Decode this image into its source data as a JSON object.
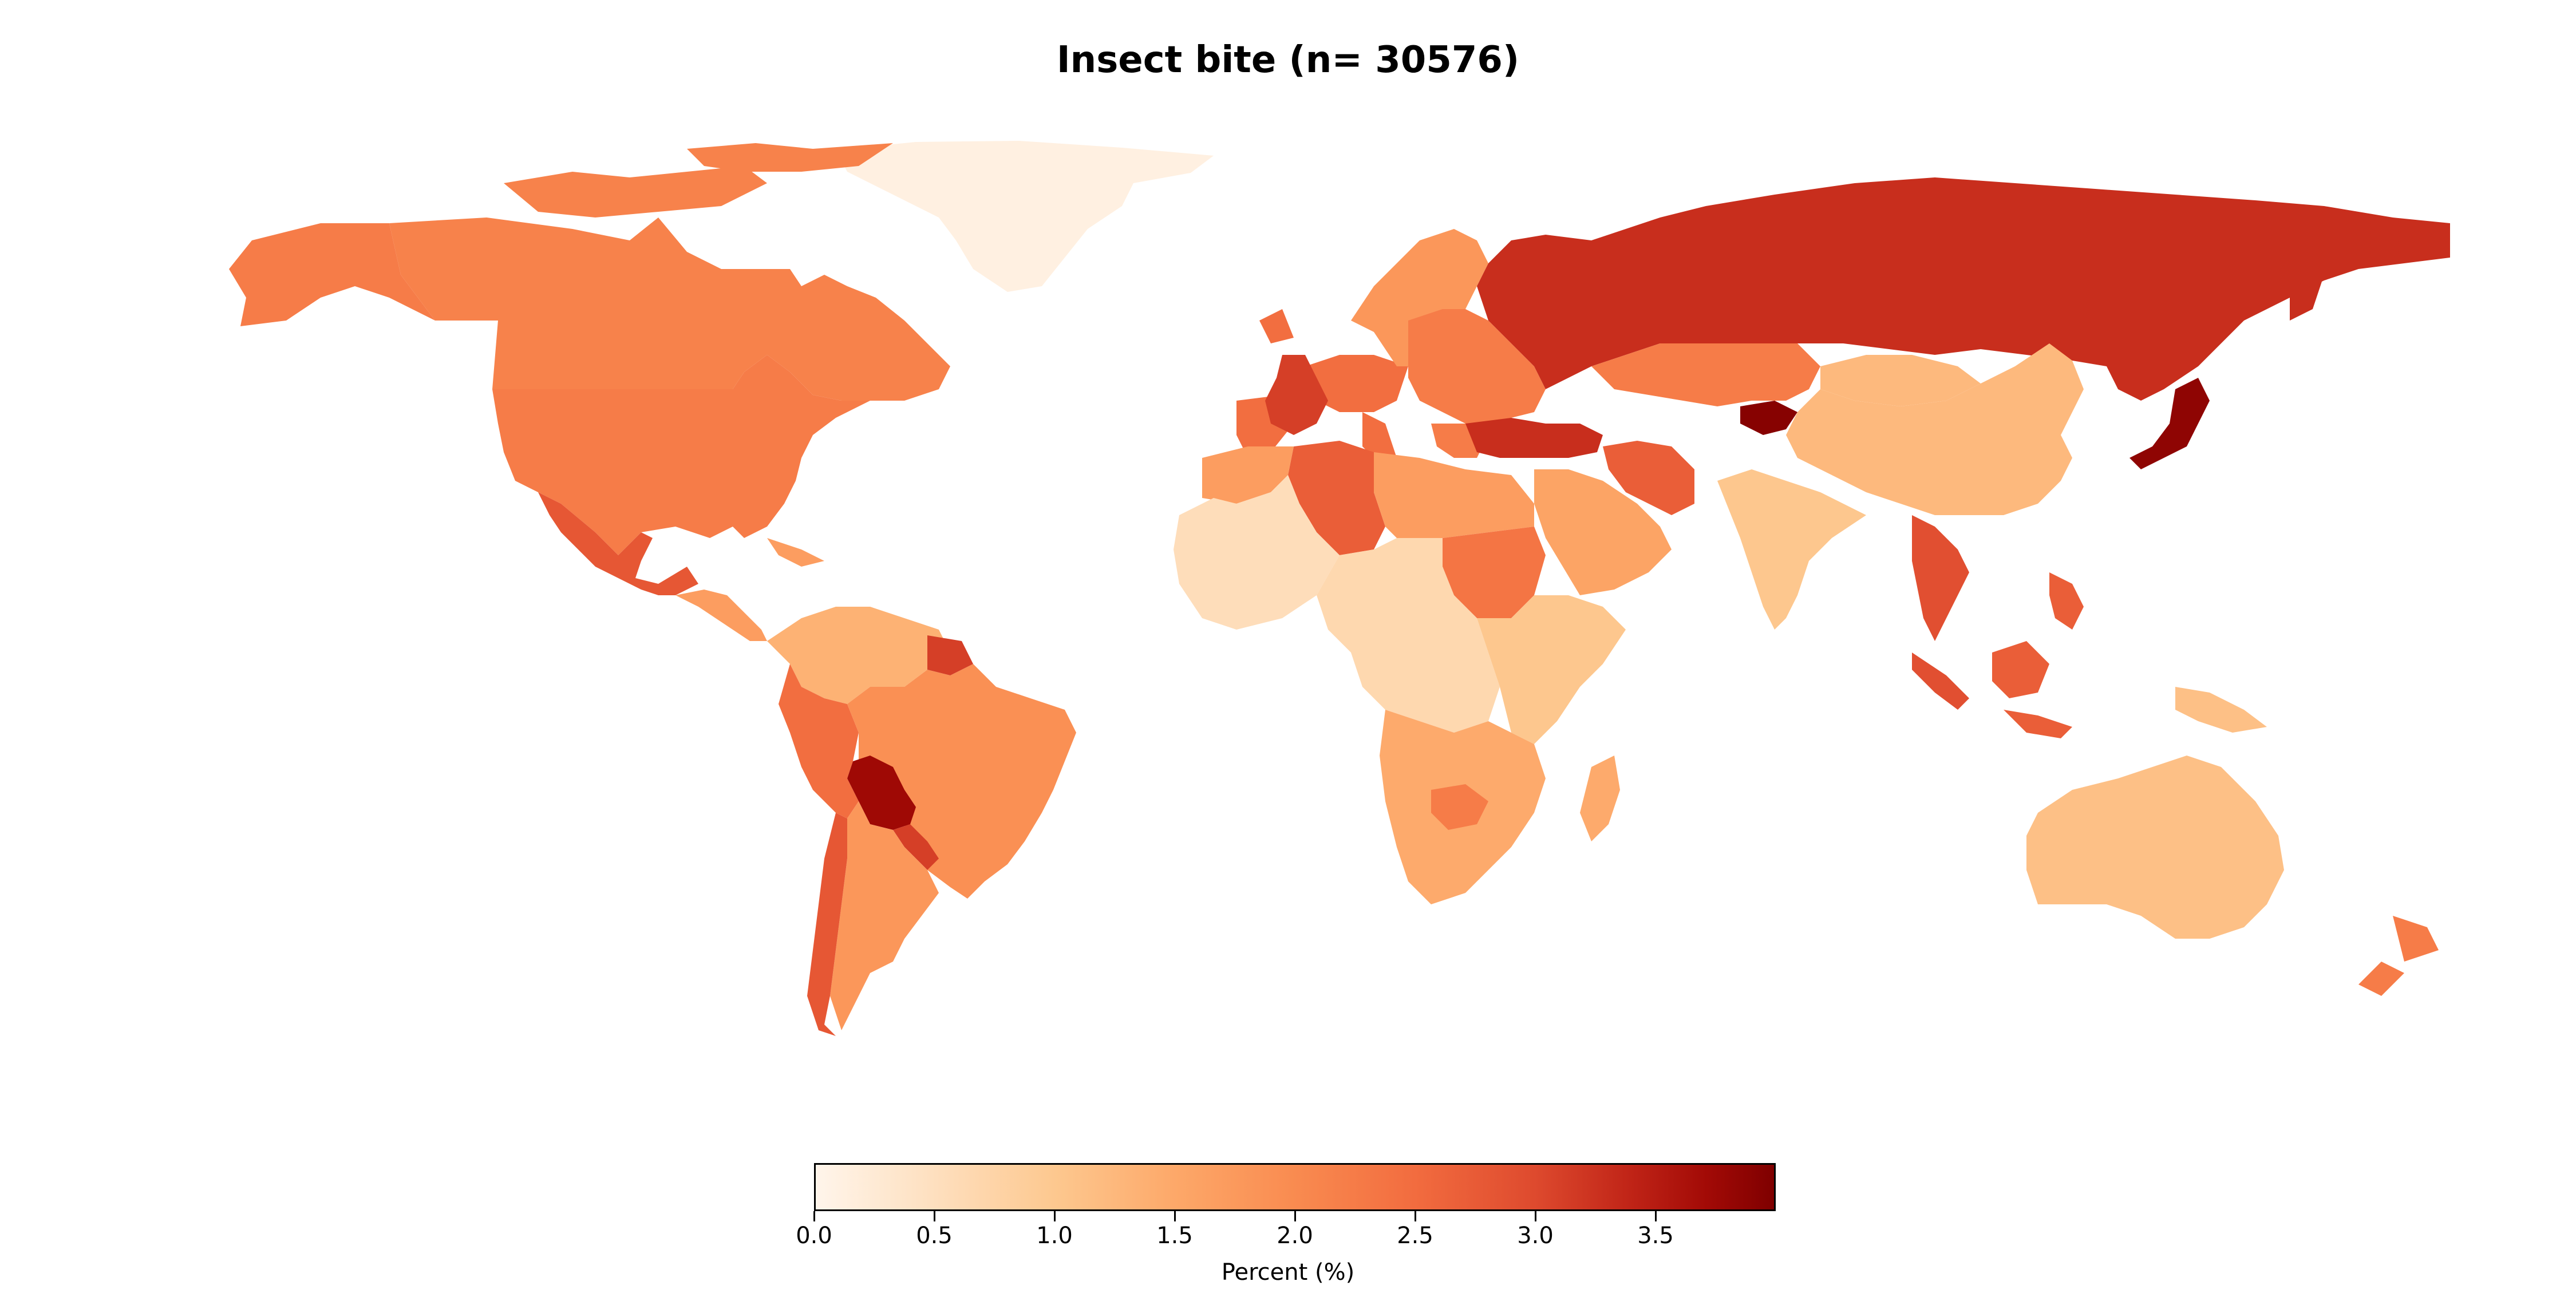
{
  "title": "Insect bite (n= 30576)",
  "colorbar": {
    "label": "Percent (%)",
    "min": 0.0,
    "max": 4.0,
    "ticks": [
      "0.0",
      "0.5",
      "1.0",
      "1.5",
      "2.0",
      "2.5",
      "3.0",
      "3.5"
    ],
    "colors": [
      "#fff5eb",
      "#fee0c0",
      "#fdc88f",
      "#fda869",
      "#f98b50",
      "#f26c3f",
      "#de4a2e",
      "#c02417",
      "#a20a06",
      "#7f0000"
    ]
  },
  "map_data": {
    "type": "choropleth",
    "regions": [
      {
        "name": "Greenland",
        "value": 0.1
      },
      {
        "name": "Canada",
        "value": 1.9
      },
      {
        "name": "USA",
        "value": 2.0
      },
      {
        "name": "Alaska",
        "value": 2.0
      },
      {
        "name": "Mexico",
        "value": 2.5
      },
      {
        "name": "Central America",
        "value": 1.5
      },
      {
        "name": "Colombia-Venezuela",
        "value": 1.2
      },
      {
        "name": "Ecuador-Peru",
        "value": 2.2
      },
      {
        "name": "Brazil",
        "value": 1.7
      },
      {
        "name": "Bolivia",
        "value": 3.6
      },
      {
        "name": "Paraguay",
        "value": 2.8
      },
      {
        "name": "Argentina",
        "value": 1.6
      },
      {
        "name": "Chile",
        "value": 2.5
      },
      {
        "name": "Guyana",
        "value": 2.8
      },
      {
        "name": "Western Europe",
        "value": 2.2
      },
      {
        "name": "France",
        "value": 2.8
      },
      {
        "name": "Scandinavia",
        "value": 1.6
      },
      {
        "name": "Eastern Europe",
        "value": 2.0
      },
      {
        "name": "Turkey",
        "value": 3.0
      },
      {
        "name": "Russia",
        "value": 3.0
      },
      {
        "name": "Kazakhstan",
        "value": 2.0
      },
      {
        "name": "Kyrgyzstan",
        "value": 3.9
      },
      {
        "name": "China",
        "value": 1.1
      },
      {
        "name": "Mongolia",
        "value": 1.1
      },
      {
        "name": "Japan",
        "value": 3.8
      },
      {
        "name": "India",
        "value": 0.9
      },
      {
        "name": "Iran",
        "value": 2.4
      },
      {
        "name": "Arabian Peninsula",
        "value": 1.4
      },
      {
        "name": "Algeria",
        "value": 2.4
      },
      {
        "name": "North Africa",
        "value": 1.5
      },
      {
        "name": "Sudan",
        "value": 2.1
      },
      {
        "name": "West Africa",
        "value": 0.5
      },
      {
        "name": "Central Africa",
        "value": 0.6
      },
      {
        "name": "East Africa",
        "value": 0.9
      },
      {
        "name": "Southern Africa",
        "value": 1.3
      },
      {
        "name": "Zimbabwe",
        "value": 2.0
      },
      {
        "name": "Madagascar",
        "value": 1.3
      },
      {
        "name": "Southeast Asia",
        "value": 2.6
      },
      {
        "name": "Indonesia",
        "value": 2.4
      },
      {
        "name": "Papua New Guinea",
        "value": 1.0
      },
      {
        "name": "Australia",
        "value": 1.0
      },
      {
        "name": "New Zealand",
        "value": 2.0
      }
    ]
  }
}
